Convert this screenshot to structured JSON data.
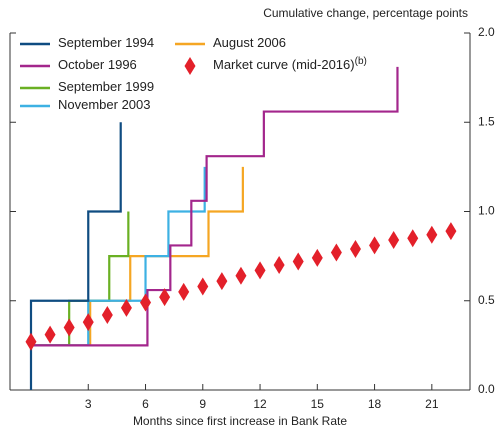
{
  "chart_data": {
    "type": "line",
    "y_axis_label": "Cumulative change, percentage points",
    "x_axis_label": "Months since first increase in Bank Rate",
    "xlim": [
      -1.1,
      23
    ],
    "xticks": [
      3,
      6,
      9,
      12,
      15,
      18,
      21
    ],
    "ylim": [
      0,
      2
    ],
    "yticks": [
      {
        "value": 0,
        "label": "0.0"
      },
      0.5,
      {
        "value": 1,
        "label": "1.0"
      },
      1.5,
      {
        "value": 2,
        "label": "2.0"
      }
    ],
    "series": [
      {
        "name": "September 1994",
        "type": "step",
        "color": "#0f4c81",
        "x": [
          0,
          0,
          3,
          4.7
        ],
        "values": [
          0,
          0.5,
          1.0,
          1.5
        ]
      },
      {
        "name": "October 1996",
        "type": "step",
        "color": "#a3268c",
        "x": [
          0,
          6.1,
          7.3,
          8.4,
          9.2,
          12.2,
          19.2
        ],
        "values": [
          0.25,
          0.56,
          0.81,
          1.06,
          1.31,
          1.56,
          1.81
        ]
      },
      {
        "name": "September 1999",
        "type": "step",
        "color": "#6ab023",
        "x": [
          0,
          2,
          4.1,
          5.1
        ],
        "values": [
          0.25,
          0.5,
          0.75,
          1.0
        ]
      },
      {
        "name": "November 2003",
        "type": "step",
        "color": "#3db1e3",
        "x": [
          0,
          3,
          6,
          7.2,
          9.1
        ],
        "values": [
          0.25,
          0.5,
          0.75,
          1.0,
          1.25
        ]
      },
      {
        "name": "August 2006",
        "type": "step",
        "color": "#f5a623",
        "x": [
          0,
          3.1,
          5.2,
          9.3,
          11.1
        ],
        "values": [
          0.25,
          0.5,
          0.75,
          1.0,
          1.25
        ]
      },
      {
        "name": "Market curve (mid-2016)",
        "footnote_mark": "(b)",
        "type": "scatter",
        "color": "#e3202a",
        "x": [
          0,
          1,
          2,
          3,
          4,
          5,
          6,
          7,
          8,
          9,
          10,
          11,
          12,
          13,
          14,
          15,
          16,
          17,
          18,
          19,
          20,
          21,
          22
        ],
        "values": [
          0.27,
          0.31,
          0.35,
          0.38,
          0.42,
          0.46,
          0.49,
          0.52,
          0.55,
          0.58,
          0.61,
          0.64,
          0.67,
          0.7,
          0.72,
          0.74,
          0.77,
          0.79,
          0.81,
          0.84,
          0.85,
          0.87,
          0.89
        ]
      }
    ]
  }
}
